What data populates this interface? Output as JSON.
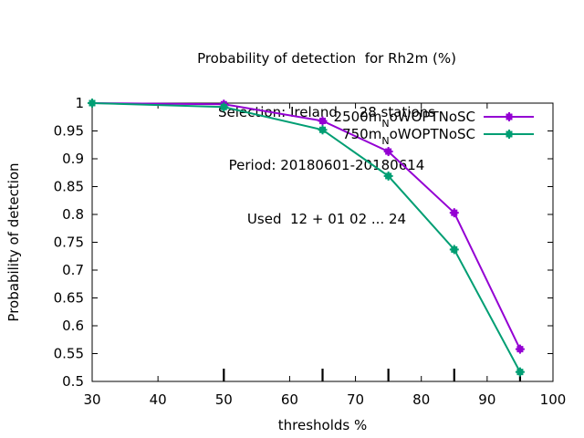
{
  "title": {
    "lines": [
      "Probability of detection  for Rh2m (%)",
      "Selection: Ireland     28 stations",
      "Period: 20180601-20180614",
      "Used  12 + 01 02 ... 24"
    ]
  },
  "chart_data": {
    "type": "line",
    "xlabel": "thresholds %",
    "ylabel": "Probability of detection",
    "xlim": [
      30,
      100
    ],
    "ylim": [
      0.5,
      1.0
    ],
    "xticks": [
      30,
      40,
      50,
      60,
      70,
      80,
      90,
      100
    ],
    "yticks": [
      0.5,
      0.55,
      0.6,
      0.65,
      0.7,
      0.75,
      0.8,
      0.85,
      0.9,
      0.95,
      1.0
    ],
    "ytick_labels": [
      "0.5",
      "0.55",
      "0.6",
      "0.65",
      "0.7",
      "0.75",
      "0.8",
      "0.85",
      "0.9",
      "0.95",
      "1"
    ],
    "bottom_tick_marks": [
      50,
      65,
      75,
      85,
      95
    ],
    "grid": false,
    "legend_position": "top-right",
    "series": [
      {
        "name": "2500m",
        "name_sub": "N",
        "name_rest": "oWOPTNoSC",
        "color": "#9400d3",
        "x": [
          30,
          50,
          65,
          75,
          85,
          95
        ],
        "y": [
          1.0,
          0.998,
          0.968,
          0.913,
          0.803,
          0.558
        ]
      },
      {
        "name": "750m",
        "name_sub": "N",
        "name_rest": "oWOPTNoSC",
        "color": "#009e73",
        "x": [
          30,
          50,
          65,
          75,
          85,
          95
        ],
        "y": [
          1.0,
          0.993,
          0.952,
          0.869,
          0.737,
          0.517
        ]
      }
    ]
  }
}
